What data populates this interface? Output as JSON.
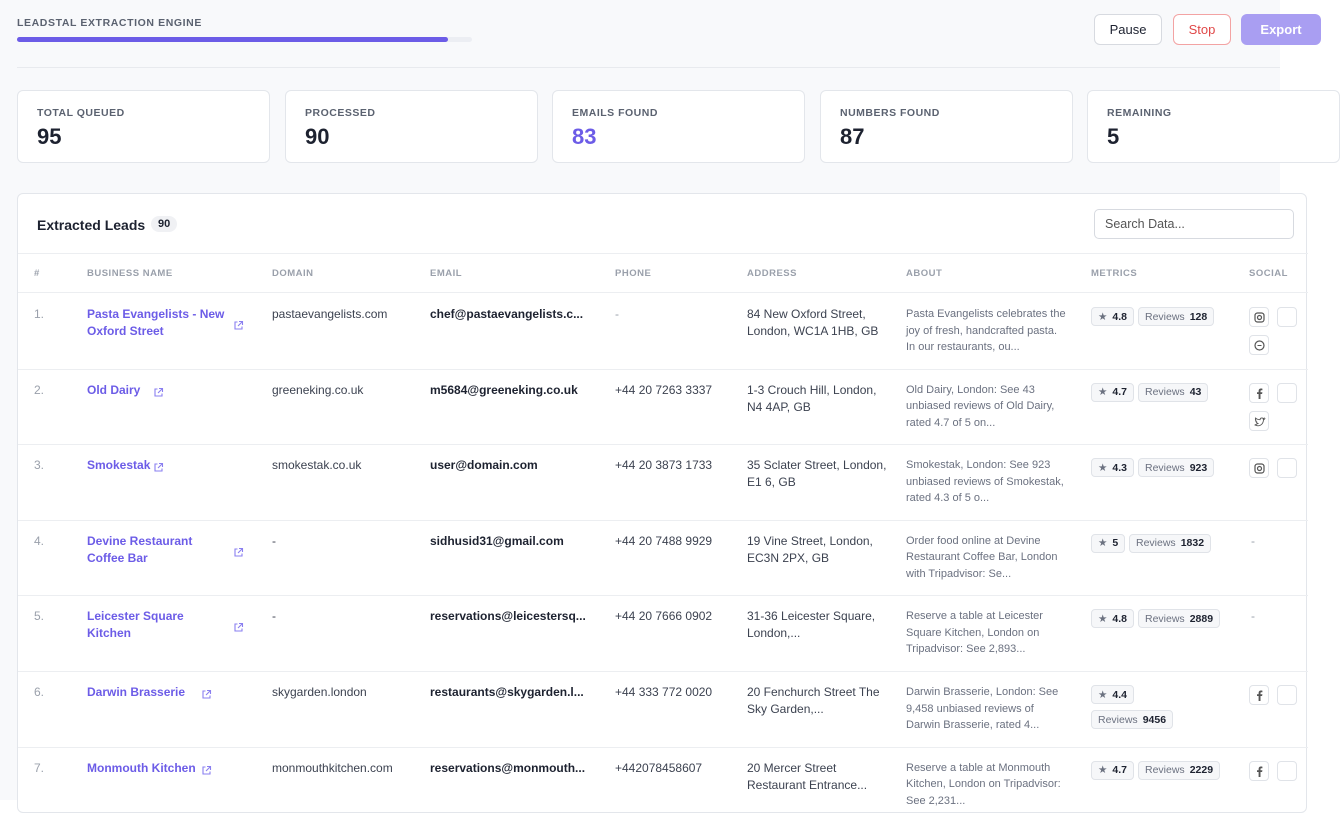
{
  "header": {
    "title": "LEADSTAL EXTRACTION ENGINE",
    "buttons": [
      "Pause",
      "Stop",
      "Export"
    ]
  },
  "stats": [
    {
      "label": "TOTAL QUEUED",
      "value": 95
    },
    {
      "label": "PROCESSED",
      "value": 90
    },
    {
      "label": "EMAILS FOUND",
      "value": 83
    },
    {
      "label": "NUMBERS FOUND",
      "value": 87
    },
    {
      "label": "REMAINING",
      "value": 5
    }
  ],
  "table": {
    "title": "Extracted Leads",
    "count": 90,
    "search_placeholder": "Search Data...",
    "reviews_label": "Reviews",
    "columns": [
      "#",
      "BUSINESS NAME",
      "DOMAIN",
      "EMAIL",
      "PHONE",
      "ADDRESS",
      "ABOUT",
      "METRICS",
      "SOCIAL"
    ],
    "rows": [
      {
        "index": "1.",
        "name": "Pasta Evangelists - New Oxford Street",
        "domain": "pastaevangelists.com",
        "email": "chef@pastaevangelists.c...",
        "phone": "-",
        "address": "84 New Oxford Street, London, WC1A 1HB, GB",
        "about": "Pasta Evangelists celebrates the joy of fresh, handcrafted pasta. In our restaurants, ou...",
        "rating": 4.8,
        "reviews": 128
      },
      {
        "index": "2.",
        "name": "Old Dairy",
        "domain": "greeneking.co.uk",
        "email": "m5684@greeneking.co.uk",
        "phone": "+44 20 7263 3337",
        "address": "1-3 Crouch Hill, London, N4 4AP, GB",
        "about": "Old Dairy, London: See 43 unbiased reviews of Old Dairy, rated 4.7 of 5 on...",
        "rating": 4.7,
        "reviews": 43
      },
      {
        "index": "3.",
        "name": "Smokestak",
        "domain": "smokestak.co.uk",
        "email": "user@domain.com",
        "phone": "+44 20 3873 1733",
        "address": "35 Sclater Street, London, E1 6, GB",
        "about": "Smokestak, London: See 923 unbiased reviews of Smokestak, rated 4.3 of 5 o...",
        "rating": 4.3,
        "reviews": 923
      },
      {
        "index": "4.",
        "name": "Devine Restaurant Coffee Bar",
        "domain": "-",
        "email": "sidhusid31@gmail.com",
        "phone": "+44 20 7488 9929",
        "address": "19 Vine Street, London, EC3N 2PX, GB",
        "about": "Order food online at Devine Restaurant Coffee Bar, London with Tripadvisor: Se...",
        "rating": 5,
        "reviews": 1832,
        "social": "-"
      },
      {
        "index": "5.",
        "name": "Leicester Square Kitchen",
        "domain": "-",
        "email": "reservations@leicestersq...",
        "phone": "+44 20 7666 0902",
        "address": "31-36 Leicester Square, London,...",
        "about": "Reserve a table at Leicester Square Kitchen, London on Tripadvisor: See 2,893...",
        "rating": 4.8,
        "reviews": 2889,
        "social": "-"
      },
      {
        "index": "6.",
        "name": "Darwin Brasserie",
        "domain": "skygarden.london",
        "email": "restaurants@skygarden.l...",
        "phone": "+44 333 772 0020",
        "address": "20 Fenchurch Street The Sky Garden,...",
        "about": "Darwin Brasserie, London: See 9,458 unbiased reviews of Darwin Brasserie, rated 4...",
        "rating": 4.4,
        "reviews": 9456
      },
      {
        "index": "7.",
        "name": "Monmouth Kitchen",
        "domain": "monmouthkitchen.com",
        "email": "reservations@monmouth...",
        "phone": "+442078458607",
        "address": "20 Mercer Street Restaurant Entrance...",
        "about": "Reserve a table at Monmouth Kitchen, London on Tripadvisor: See 2,231...",
        "rating": 4.7,
        "reviews": 2229
      }
    ]
  }
}
